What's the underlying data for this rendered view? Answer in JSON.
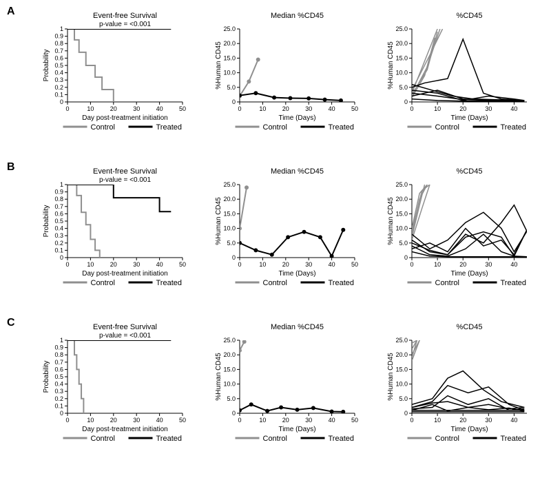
{
  "colors": {
    "control": "#8f8f8f",
    "treated": "#000000",
    "axis": "#000000",
    "bg": "#ffffff"
  },
  "fonts": {
    "base": "Arial",
    "title_pt": 11,
    "label_pt": 10,
    "tick_pt": 9,
    "panel_pt": 16
  },
  "panels": [
    "A",
    "B",
    "C"
  ],
  "legends": {
    "control": "Control",
    "treated": "Treated"
  },
  "survival": {
    "title": "Event-free Survival",
    "pvalue": "p-value = <0.001",
    "xlabel": "Day post-treatment initiation",
    "ylabel": "Probability",
    "xlim": [
      0,
      50
    ],
    "ylim": [
      0,
      1
    ],
    "xticks": [
      0,
      10,
      20,
      30,
      40,
      50
    ],
    "yticks": [
      0,
      0.1,
      0.2,
      0.3,
      0.4,
      0.5,
      0.6,
      0.7,
      0.8,
      0.9,
      1
    ],
    "A": {
      "control": [
        [
          0,
          1
        ],
        [
          3,
          1
        ],
        [
          3,
          0.85
        ],
        [
          5,
          0.85
        ],
        [
          5,
          0.68
        ],
        [
          8,
          0.68
        ],
        [
          8,
          0.5
        ],
        [
          12,
          0.5
        ],
        [
          12,
          0.34
        ],
        [
          15,
          0.34
        ],
        [
          15,
          0.17
        ],
        [
          20,
          0.17
        ],
        [
          20,
          0
        ]
      ],
      "treated": [
        [
          0,
          1
        ],
        [
          45,
          1
        ]
      ]
    },
    "B": {
      "control": [
        [
          0,
          1
        ],
        [
          4,
          1
        ],
        [
          4,
          0.85
        ],
        [
          6,
          0.85
        ],
        [
          6,
          0.62
        ],
        [
          8,
          0.62
        ],
        [
          8,
          0.45
        ],
        [
          10,
          0.45
        ],
        [
          10,
          0.25
        ],
        [
          12,
          0.25
        ],
        [
          12,
          0.1
        ],
        [
          14,
          0.1
        ],
        [
          14,
          0
        ]
      ],
      "treated": [
        [
          0,
          1
        ],
        [
          20,
          1
        ],
        [
          20,
          0.82
        ],
        [
          40,
          0.82
        ],
        [
          40,
          0.63
        ],
        [
          45,
          0.63
        ]
      ]
    },
    "C": {
      "control": [
        [
          0,
          1
        ],
        [
          3,
          1
        ],
        [
          3,
          0.8
        ],
        [
          4,
          0.8
        ],
        [
          4,
          0.6
        ],
        [
          5,
          0.6
        ],
        [
          5,
          0.4
        ],
        [
          6,
          0.4
        ],
        [
          6,
          0.2
        ],
        [
          7,
          0.2
        ],
        [
          7,
          0
        ]
      ],
      "treated": [
        [
          0,
          1
        ],
        [
          45,
          1
        ]
      ]
    }
  },
  "median": {
    "title": "Median %CD45",
    "xlabel": "Time (Days)",
    "ylabel": "%Human CD45",
    "xlim": [
      0,
      50
    ],
    "ylim": [
      0,
      25
    ],
    "xticks": [
      0,
      10,
      20,
      30,
      40,
      50
    ],
    "yticks": [
      0,
      5,
      10,
      15,
      20,
      25
    ],
    "ytick_labels": [
      "0",
      "5.0",
      "10.0",
      "15.0",
      "20.0",
      "25.0"
    ],
    "A": {
      "control": [
        [
          0,
          2.0
        ],
        [
          4,
          7.0
        ],
        [
          8,
          14.5
        ]
      ],
      "treated": [
        [
          0,
          2.2
        ],
        [
          7,
          3.0
        ],
        [
          15,
          1.5
        ],
        [
          22,
          1.3
        ],
        [
          30,
          1.2
        ],
        [
          37,
          0.8
        ],
        [
          44,
          0.5
        ]
      ]
    },
    "B": {
      "control": [
        [
          0,
          10.0
        ],
        [
          3,
          24.0
        ]
      ],
      "treated": [
        [
          0,
          5.0
        ],
        [
          7,
          2.5
        ],
        [
          14,
          1.0
        ],
        [
          21,
          7.0
        ],
        [
          28,
          8.8
        ],
        [
          35,
          7.0
        ],
        [
          40,
          0.5
        ],
        [
          45,
          9.5
        ]
      ]
    },
    "C": {
      "control": [
        [
          0,
          21.5
        ],
        [
          2,
          24.5
        ]
      ],
      "treated": [
        [
          0,
          1.0
        ],
        [
          5,
          3.0
        ],
        [
          12,
          0.8
        ],
        [
          18,
          2.0
        ],
        [
          25,
          1.2
        ],
        [
          32,
          1.8
        ],
        [
          40,
          0.6
        ],
        [
          45,
          0.5
        ]
      ]
    }
  },
  "spaghetti": {
    "title": "%CD45",
    "xlabel": "Time (Days)",
    "ylabel": "%Human CD45",
    "xlim": [
      0,
      45
    ],
    "ylim": [
      0,
      25
    ],
    "xticks": [
      0,
      10,
      20,
      30,
      40
    ],
    "yticks": [
      0,
      5,
      10,
      15,
      20,
      25
    ],
    "ytick_labels": [
      "0",
      "5.0",
      "10.0",
      "15.0",
      "20.0",
      "25.0"
    ],
    "A": {
      "control": [
        [
          [
            0,
            3
          ],
          [
            5,
            14
          ],
          [
            10,
            27
          ]
        ],
        [
          [
            0,
            2
          ],
          [
            6,
            12
          ],
          [
            11,
            26
          ]
        ],
        [
          [
            0,
            4
          ],
          [
            7,
            16
          ],
          [
            12,
            28
          ]
        ],
        [
          [
            0,
            1.5
          ],
          [
            5,
            9
          ],
          [
            9,
            22
          ]
        ],
        [
          [
            0,
            2.5
          ],
          [
            6,
            11
          ],
          [
            10,
            24
          ]
        ]
      ],
      "treated": [
        [
          [
            0,
            4
          ],
          [
            10,
            3
          ],
          [
            20,
            0.5
          ],
          [
            30,
            2
          ],
          [
            40,
            1
          ],
          [
            44,
            0.5
          ]
        ],
        [
          [
            0,
            5
          ],
          [
            5,
            6.5
          ],
          [
            14,
            8
          ],
          [
            20,
            21.5
          ],
          [
            28,
            3
          ],
          [
            35,
            1
          ],
          [
            44,
            0.5
          ]
        ],
        [
          [
            0,
            2
          ],
          [
            10,
            4
          ],
          [
            20,
            1
          ],
          [
            30,
            0.5
          ],
          [
            40,
            0.3
          ],
          [
            44,
            0.2
          ]
        ],
        [
          [
            0,
            3
          ],
          [
            10,
            2
          ],
          [
            20,
            0.8
          ],
          [
            30,
            0.6
          ],
          [
            40,
            0.5
          ],
          [
            44,
            0.4
          ]
        ],
        [
          [
            0,
            6
          ],
          [
            8,
            4
          ],
          [
            16,
            2
          ],
          [
            24,
            1
          ],
          [
            32,
            0.8
          ],
          [
            44,
            0.5
          ]
        ],
        [
          [
            0,
            1
          ],
          [
            10,
            0.5
          ],
          [
            20,
            0.3
          ],
          [
            30,
            0.3
          ],
          [
            40,
            0.2
          ],
          [
            44,
            0.2
          ]
        ]
      ]
    },
    "B": {
      "control": [
        [
          [
            0,
            8
          ],
          [
            3,
            20
          ],
          [
            6,
            32
          ]
        ],
        [
          [
            0,
            9
          ],
          [
            4,
            23
          ],
          [
            7,
            35
          ]
        ],
        [
          [
            0,
            7
          ],
          [
            3,
            18
          ],
          [
            5,
            30
          ]
        ],
        [
          [
            0,
            10
          ],
          [
            3,
            22
          ],
          [
            6,
            34
          ]
        ],
        [
          [
            0,
            6
          ],
          [
            4,
            17
          ],
          [
            7,
            29
          ]
        ]
      ],
      "treated": [
        [
          [
            0,
            8
          ],
          [
            7,
            3
          ],
          [
            14,
            6
          ],
          [
            21,
            12
          ],
          [
            28,
            15.5
          ],
          [
            35,
            10
          ],
          [
            40,
            2
          ],
          [
            45,
            9
          ]
        ],
        [
          [
            0,
            6
          ],
          [
            7,
            2
          ],
          [
            14,
            1
          ],
          [
            21,
            8
          ],
          [
            28,
            5
          ],
          [
            35,
            12
          ],
          [
            40,
            18
          ],
          [
            45,
            9
          ]
        ],
        [
          [
            0,
            4
          ],
          [
            7,
            1
          ],
          [
            14,
            0.5
          ],
          [
            21,
            3
          ],
          [
            28,
            8
          ],
          [
            35,
            2
          ],
          [
            40,
            0.5
          ],
          [
            45,
            0.3
          ]
        ],
        [
          [
            0,
            3
          ],
          [
            7,
            5
          ],
          [
            14,
            2
          ],
          [
            21,
            10
          ],
          [
            28,
            4
          ],
          [
            35,
            6
          ],
          [
            40,
            1
          ],
          [
            45,
            9.5
          ]
        ],
        [
          [
            0,
            5
          ],
          [
            7,
            2.5
          ],
          [
            14,
            1
          ],
          [
            21,
            7
          ],
          [
            28,
            8.8
          ],
          [
            35,
            7
          ],
          [
            40,
            0.5
          ],
          [
            45,
            9.5
          ]
        ],
        [
          [
            0,
            2
          ],
          [
            7,
            0.5
          ],
          [
            14,
            0.3
          ],
          [
            21,
            0.3
          ],
          [
            28,
            0.3
          ],
          [
            35,
            0.3
          ],
          [
            40,
            0.3
          ],
          [
            45,
            0.3
          ]
        ]
      ]
    },
    "C": {
      "control": [
        [
          [
            0,
            22
          ],
          [
            2,
            30
          ]
        ],
        [
          [
            0,
            20
          ],
          [
            3,
            28
          ]
        ],
        [
          [
            0,
            24
          ],
          [
            2,
            32
          ]
        ],
        [
          [
            0,
            18
          ],
          [
            3,
            27
          ]
        ],
        [
          [
            0,
            19
          ],
          [
            2,
            29
          ]
        ]
      ],
      "treated": [
        [
          [
            0,
            3
          ],
          [
            8,
            5
          ],
          [
            14,
            12
          ],
          [
            20,
            14.5
          ],
          [
            28,
            8
          ],
          [
            35,
            4
          ],
          [
            44,
            2
          ]
        ],
        [
          [
            0,
            2
          ],
          [
            8,
            4
          ],
          [
            14,
            9.5
          ],
          [
            22,
            7
          ],
          [
            30,
            9
          ],
          [
            38,
            3
          ],
          [
            44,
            1
          ]
        ],
        [
          [
            0,
            1.5
          ],
          [
            8,
            2
          ],
          [
            14,
            6
          ],
          [
            22,
            3
          ],
          [
            30,
            5
          ],
          [
            38,
            1
          ],
          [
            44,
            1.5
          ]
        ],
        [
          [
            0,
            1
          ],
          [
            8,
            3
          ],
          [
            14,
            0.8
          ],
          [
            22,
            2
          ],
          [
            30,
            1.2
          ],
          [
            38,
            1.8
          ],
          [
            44,
            0.6
          ]
        ],
        [
          [
            0,
            0.5
          ],
          [
            8,
            0.5
          ],
          [
            14,
            0.5
          ],
          [
            22,
            0.5
          ],
          [
            30,
            0.5
          ],
          [
            38,
            0.5
          ],
          [
            44,
            0.5
          ]
        ],
        [
          [
            0,
            2
          ],
          [
            8,
            3.5
          ],
          [
            14,
            4
          ],
          [
            22,
            2
          ],
          [
            30,
            3
          ],
          [
            38,
            1.5
          ],
          [
            44,
            2
          ]
        ],
        [
          [
            0,
            1
          ],
          [
            8,
            1
          ],
          [
            14,
            1
          ],
          [
            22,
            1
          ],
          [
            30,
            1
          ],
          [
            38,
            1
          ],
          [
            44,
            1
          ]
        ]
      ]
    }
  }
}
